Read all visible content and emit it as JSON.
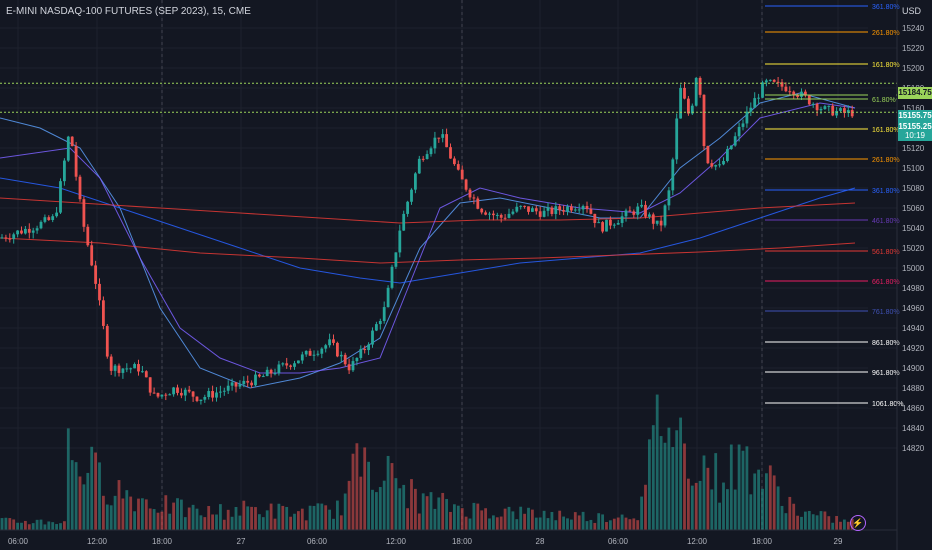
{
  "header": {
    "title": "E-MINI NASDAQ-100 FUTURES (SEP 2023), 15, CME",
    "currency": "USD"
  },
  "price_tags": {
    "upper": "15184.75",
    "last_a": "15155.75",
    "last_b": "15155.25",
    "countdown": "10:19"
  },
  "colors": {
    "background": "#131722",
    "up_candle": "#26a69a",
    "down_candle": "#ef5350",
    "ma_light_blue": "#5b9cf6",
    "ma_blue": "#2962ff",
    "ma_red": "#e53935",
    "dotted_green": "#9bd45a"
  },
  "chart_data": {
    "type": "candlestick",
    "title": "E-MINI NASDAQ-100 FUTURES (SEP 2023), 15, CME",
    "yaxis": {
      "ticks": [
        15240,
        15220,
        15200,
        15180,
        15160,
        15140,
        15120,
        15100,
        15080,
        15060,
        15040,
        15020,
        15000,
        14980,
        14960,
        14940,
        14920,
        14900,
        14880,
        14860,
        14840,
        14820
      ],
      "range": [
        14810,
        15262
      ]
    },
    "xaxis": {
      "tick_labels": [
        "06:00",
        "12:00",
        "18:00",
        "27",
        "06:00",
        "12:00",
        "18:00",
        "28",
        "06:00",
        "12:00",
        "18:00",
        "29"
      ]
    },
    "fib_levels": [
      {
        "label": "361.80%",
        "price": 15262,
        "color": "#2962ff"
      },
      {
        "label": "261.80%",
        "price": 15236,
        "color": "#ff9800"
      },
      {
        "label": "161.80%",
        "price": 15204,
        "color": "#ffeb3b"
      },
      {
        "label": "61.80%",
        "price": 15173,
        "color": "#9bd45a"
      },
      {
        "label": "61.80%",
        "price": 15169,
        "color": "#9bd45a"
      },
      {
        "label": "161.80%",
        "price": 15139,
        "color": "#ffeb3b"
      },
      {
        "label": "261.80%",
        "price": 15109,
        "color": "#ff9800"
      },
      {
        "label": "361.80%",
        "price": 15078,
        "color": "#2962ff"
      },
      {
        "label": "461.80%",
        "price": 15048,
        "color": "#673ab7"
      },
      {
        "label": "561.80%",
        "price": 15017,
        "color": "#e53935"
      },
      {
        "label": "661.80%",
        "price": 14987,
        "color": "#e91e63"
      },
      {
        "label": "761.80%",
        "price": 14957,
        "color": "#3f51b5"
      },
      {
        "label": "861.80%",
        "price": 14926,
        "color": "#ffffff"
      },
      {
        "label": "961.80%",
        "price": 14896,
        "color": "#ffffff"
      },
      {
        "label": "1061.80%",
        "price": 14865,
        "color": "#ffffff"
      }
    ],
    "key_levels": [
      15184.75,
      15155.75
    ],
    "price_anchors": [
      [
        0,
        15030
      ],
      [
        30,
        15040
      ],
      [
        55,
        15050
      ],
      [
        70,
        15140
      ],
      [
        75,
        15100
      ],
      [
        82,
        15050
      ],
      [
        95,
        14990
      ],
      [
        110,
        14900
      ],
      [
        140,
        14900
      ],
      [
        155,
        14870
      ],
      [
        175,
        14880
      ],
      [
        200,
        14870
      ],
      [
        230,
        14880
      ],
      [
        260,
        14890
      ],
      [
        300,
        14910
      ],
      [
        330,
        14925
      ],
      [
        350,
        14900
      ],
      [
        365,
        14920
      ],
      [
        385,
        14960
      ],
      [
        400,
        15040
      ],
      [
        420,
        15110
      ],
      [
        440,
        15135
      ],
      [
        460,
        15090
      ],
      [
        480,
        15060
      ],
      [
        500,
        15050
      ],
      [
        520,
        15060
      ],
      [
        545,
        15055
      ],
      [
        565,
        15060
      ],
      [
        585,
        15065
      ],
      [
        600,
        15040
      ],
      [
        620,
        15050
      ],
      [
        640,
        15060
      ],
      [
        660,
        15040
      ],
      [
        670,
        15080
      ],
      [
        680,
        15180
      ],
      [
        690,
        15150
      ],
      [
        698,
        15205
      ],
      [
        705,
        15110
      ],
      [
        720,
        15100
      ],
      [
        735,
        15130
      ],
      [
        750,
        15160
      ],
      [
        765,
        15185
      ],
      [
        790,
        15180
      ],
      [
        805,
        15170
      ],
      [
        825,
        15158
      ],
      [
        845,
        15155
      ],
      [
        855,
        15156
      ]
    ],
    "volume_peaks": [
      [
        68,
        95
      ],
      [
        100,
        60
      ],
      [
        130,
        40
      ],
      [
        160,
        30
      ],
      [
        200,
        20
      ],
      [
        250,
        25
      ],
      [
        300,
        20
      ],
      [
        340,
        25
      ],
      [
        366,
        100
      ],
      [
        380,
        70
      ],
      [
        420,
        35
      ],
      [
        470,
        25
      ],
      [
        520,
        20
      ],
      [
        560,
        18
      ],
      [
        600,
        15
      ],
      [
        640,
        20
      ],
      [
        662,
        150
      ],
      [
        670,
        120
      ],
      [
        700,
        80
      ],
      [
        720,
        60
      ],
      [
        744,
        85
      ],
      [
        800,
        20
      ],
      [
        850,
        10
      ]
    ],
    "moving_averages": [
      {
        "color": "#5b9cf6",
        "points": [
          [
            0,
            15150
          ],
          [
            40,
            15140
          ],
          [
            80,
            15120
          ],
          [
            120,
            15060
          ],
          [
            160,
            14960
          ],
          [
            200,
            14900
          ],
          [
            250,
            14880
          ],
          [
            300,
            14890
          ],
          [
            340,
            14905
          ],
          [
            380,
            14930
          ],
          [
            420,
            15020
          ],
          [
            460,
            15065
          ],
          [
            500,
            15070
          ],
          [
            550,
            15060
          ],
          [
            600,
            15050
          ],
          [
            640,
            15050
          ],
          [
            680,
            15100
          ],
          [
            720,
            15130
          ],
          [
            760,
            15165
          ],
          [
            800,
            15175
          ],
          [
            855,
            15160
          ]
        ]
      },
      {
        "color": "#2962ff",
        "points": [
          [
            0,
            15090
          ],
          [
            60,
            15080
          ],
          [
            120,
            15060
          ],
          [
            180,
            15040
          ],
          [
            240,
            15020
          ],
          [
            300,
            15000
          ],
          [
            360,
            14990
          ],
          [
            400,
            14985
          ],
          [
            460,
            14995
          ],
          [
            520,
            15005
          ],
          [
            580,
            15010
          ],
          [
            640,
            15015
          ],
          [
            700,
            15030
          ],
          [
            760,
            15050
          ],
          [
            820,
            15070
          ],
          [
            855,
            15080
          ]
        ]
      },
      {
        "color": "#e53935",
        "points": [
          [
            0,
            15070
          ],
          [
            80,
            15065
          ],
          [
            160,
            15060
          ],
          [
            240,
            15055
          ],
          [
            320,
            15050
          ],
          [
            400,
            15045
          ],
          [
            480,
            15048
          ],
          [
            560,
            15048
          ],
          [
            640,
            15050
          ],
          [
            700,
            15055
          ],
          [
            760,
            15060
          ],
          [
            855,
            15065
          ]
        ]
      },
      {
        "color": "#e53935",
        "points": [
          [
            0,
            15030
          ],
          [
            100,
            15025
          ],
          [
            200,
            15015
          ],
          [
            300,
            15010
          ],
          [
            380,
            15005
          ],
          [
            460,
            15008
          ],
          [
            540,
            15010
          ],
          [
            620,
            15013
          ],
          [
            700,
            15016
          ],
          [
            780,
            15020
          ],
          [
            855,
            15025
          ]
        ]
      },
      {
        "color": "#7b61ff",
        "points": [
          [
            0,
            15110
          ],
          [
            70,
            15120
          ],
          [
            100,
            15090
          ],
          [
            140,
            15010
          ],
          [
            180,
            14940
          ],
          [
            220,
            14910
          ],
          [
            260,
            14895
          ],
          [
            300,
            14895
          ],
          [
            340,
            14900
          ],
          [
            380,
            14910
          ],
          [
            410,
            14985
          ],
          [
            440,
            15060
          ],
          [
            480,
            15080
          ],
          [
            520,
            15070
          ],
          [
            580,
            15060
          ],
          [
            640,
            15055
          ],
          [
            680,
            15075
          ],
          [
            720,
            15110
          ],
          [
            760,
            15150
          ],
          [
            820,
            15165
          ],
          [
            855,
            15160
          ]
        ]
      }
    ]
  }
}
